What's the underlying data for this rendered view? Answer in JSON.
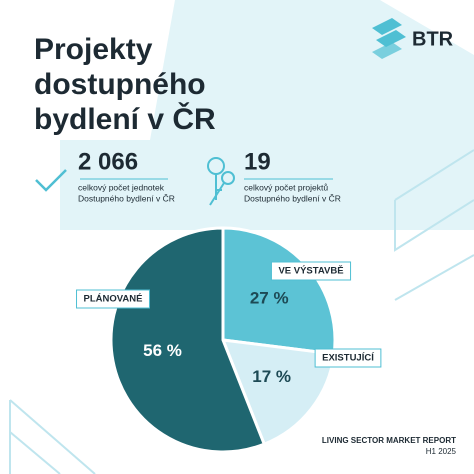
{
  "logo": "BTR",
  "stats": [
    {
      "value": "2 066",
      "caption": [
        "celkový počet jednotek",
        "Dostupného bydlení v ČR"
      ]
    },
    {
      "value": "19",
      "caption": [
        "celkový počet projektů",
        "Dostupného bydlení v ČR"
      ]
    }
  ],
  "footer": [
    "LIVING SECTOR MARKET REPORT",
    "H1 2025"
  ],
  "chart_data": {
    "type": "pie",
    "title": "Projekty dostupného bydlení v ČR",
    "categories": [
      "VE VÝSTAVBĚ",
      "EXISTUJÍCÍ",
      "PLÁNOVANÉ"
    ],
    "values": [
      27,
      17,
      56
    ],
    "value_labels": [
      "27 %",
      "17 %",
      "56 %"
    ],
    "colors": [
      "#5cc3d5",
      "#d5eef5",
      "#1f6670"
    ]
  }
}
